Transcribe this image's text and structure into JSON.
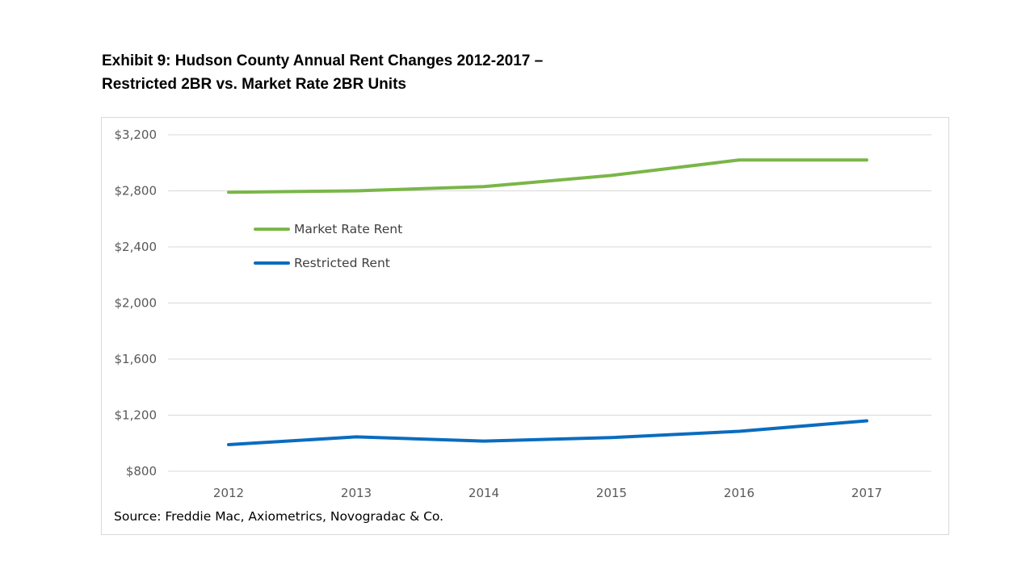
{
  "title": {
    "line1": "Exhibit 9: Hudson County Annual Rent Changes 2012-2017 –",
    "line2": "Restricted 2BR vs. Market Rate 2BR Units"
  },
  "source": "Source: Freddie Mac, Axiometrics, Novogradac & Co.",
  "chart_data": {
    "type": "line",
    "title": "Exhibit 9: Hudson County Annual Rent Changes 2012-2017 – Restricted 2BR vs. Market Rate 2BR Units",
    "categories": [
      "2012",
      "2013",
      "2014",
      "2015",
      "2016",
      "2017"
    ],
    "series": [
      {
        "name": "Market Rate Rent",
        "color": "#7ab648",
        "values": [
          2790,
          2800,
          2830,
          2910,
          3020,
          3020
        ]
      },
      {
        "name": "Restricted Rent",
        "color": "#0a6cbf",
        "values": [
          990,
          1045,
          1015,
          1040,
          1085,
          1160
        ]
      }
    ],
    "yticks": [
      800,
      1200,
      1600,
      2000,
      2400,
      2800,
      3200
    ],
    "ytick_labels": [
      "$800",
      "$1,200",
      "$1,600",
      "$2,000",
      "$2,400",
      "$2,800",
      "$3,200"
    ],
    "ylim": [
      800,
      3200
    ],
    "grid": true,
    "legend_position": "upper-left"
  }
}
